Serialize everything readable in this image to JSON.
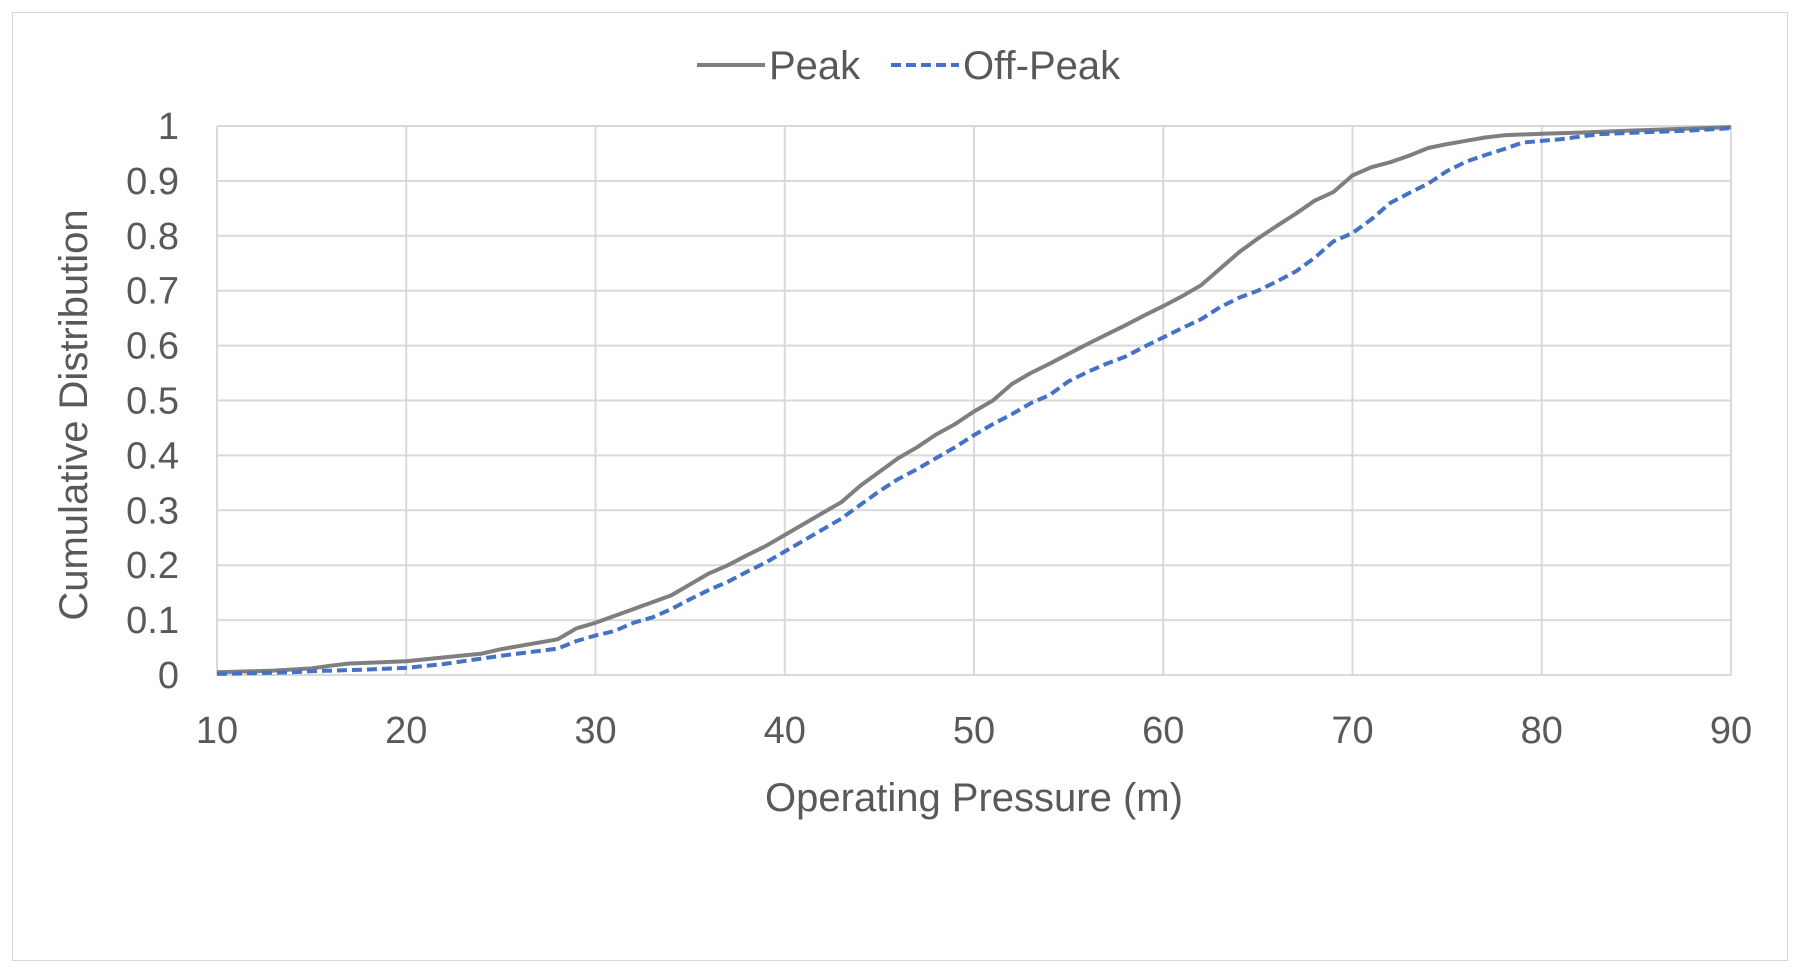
{
  "chart_data": {
    "type": "line",
    "title": "",
    "xlabel": "Operating Pressure (m)",
    "ylabel": "Cumulative Distribution",
    "xlim": [
      10,
      90
    ],
    "ylim": [
      0,
      1
    ],
    "x_ticks": [
      10,
      20,
      30,
      40,
      50,
      60,
      70,
      80,
      90
    ],
    "x_tick_labels": [
      "10",
      "20",
      "30",
      "40",
      "50",
      "60",
      "70",
      "80",
      "90"
    ],
    "y_ticks": [
      0,
      0.1,
      0.2,
      0.3,
      0.4,
      0.5,
      0.6,
      0.7,
      0.8,
      0.9,
      1
    ],
    "y_tick_labels": [
      "0",
      "0.1",
      "0.2",
      "0.3",
      "0.4",
      "0.5",
      "0.6",
      "0.7",
      "0.8",
      "0.9",
      "1"
    ],
    "grid": true,
    "legend_position": "top-center",
    "series": [
      {
        "name": "Peak",
        "color": "#7f7f7f",
        "style": "solid",
        "points": [
          [
            10,
            0.005
          ],
          [
            13,
            0.008
          ],
          [
            15,
            0.012
          ],
          [
            16,
            0.017
          ],
          [
            17,
            0.021
          ],
          [
            20,
            0.025
          ],
          [
            22,
            0.032
          ],
          [
            24,
            0.039
          ],
          [
            25,
            0.047
          ],
          [
            28,
            0.065
          ],
          [
            29,
            0.085
          ],
          [
            30,
            0.095
          ],
          [
            32,
            0.12
          ],
          [
            34,
            0.145
          ],
          [
            35,
            0.165
          ],
          [
            36,
            0.185
          ],
          [
            37,
            0.2
          ],
          [
            38,
            0.218
          ],
          [
            39,
            0.235
          ],
          [
            40,
            0.255
          ],
          [
            41,
            0.275
          ],
          [
            42,
            0.295
          ],
          [
            43,
            0.315
          ],
          [
            44,
            0.345
          ],
          [
            45,
            0.37
          ],
          [
            46,
            0.395
          ],
          [
            47,
            0.415
          ],
          [
            48,
            0.438
          ],
          [
            49,
            0.457
          ],
          [
            50,
            0.48
          ],
          [
            51,
            0.5
          ],
          [
            52,
            0.53
          ],
          [
            53,
            0.55
          ],
          [
            54,
            0.567
          ],
          [
            55,
            0.585
          ],
          [
            56,
            0.603
          ],
          [
            57,
            0.62
          ],
          [
            58,
            0.637
          ],
          [
            59,
            0.655
          ],
          [
            60,
            0.672
          ],
          [
            61,
            0.69
          ],
          [
            62,
            0.71
          ],
          [
            63,
            0.74
          ],
          [
            64,
            0.77
          ],
          [
            65,
            0.795
          ],
          [
            66,
            0.818
          ],
          [
            67,
            0.84
          ],
          [
            68,
            0.864
          ],
          [
            69,
            0.88
          ],
          [
            70,
            0.91
          ],
          [
            71,
            0.925
          ],
          [
            72,
            0.934
          ],
          [
            73,
            0.946
          ],
          [
            74,
            0.96
          ],
          [
            75,
            0.967
          ],
          [
            76,
            0.973
          ],
          [
            77,
            0.979
          ],
          [
            78,
            0.983
          ],
          [
            80,
            0.986
          ],
          [
            82,
            0.988
          ],
          [
            85,
            0.992
          ],
          [
            90,
            0.998
          ]
        ]
      },
      {
        "name": "Off-Peak",
        "color": "#4472c4",
        "style": "dashed",
        "points": [
          [
            10,
            0.002
          ],
          [
            14,
            0.005
          ],
          [
            15,
            0.007
          ],
          [
            18,
            0.01
          ],
          [
            20,
            0.013
          ],
          [
            22,
            0.02
          ],
          [
            24,
            0.03
          ],
          [
            25,
            0.035
          ],
          [
            28,
            0.048
          ],
          [
            29,
            0.062
          ],
          [
            30,
            0.072
          ],
          [
            31,
            0.08
          ],
          [
            32,
            0.095
          ],
          [
            33,
            0.105
          ],
          [
            34,
            0.12
          ],
          [
            35,
            0.138
          ],
          [
            36,
            0.155
          ],
          [
            37,
            0.17
          ],
          [
            38,
            0.188
          ],
          [
            39,
            0.205
          ],
          [
            40,
            0.225
          ],
          [
            41,
            0.245
          ],
          [
            42,
            0.265
          ],
          [
            43,
            0.285
          ],
          [
            44,
            0.31
          ],
          [
            45,
            0.335
          ],
          [
            46,
            0.357
          ],
          [
            47,
            0.375
          ],
          [
            48,
            0.395
          ],
          [
            49,
            0.415
          ],
          [
            50,
            0.437
          ],
          [
            51,
            0.457
          ],
          [
            52,
            0.475
          ],
          [
            53,
            0.495
          ],
          [
            54,
            0.51
          ],
          [
            55,
            0.535
          ],
          [
            56,
            0.552
          ],
          [
            57,
            0.567
          ],
          [
            58,
            0.58
          ],
          [
            59,
            0.598
          ],
          [
            60,
            0.615
          ],
          [
            61,
            0.632
          ],
          [
            62,
            0.648
          ],
          [
            63,
            0.67
          ],
          [
            64,
            0.687
          ],
          [
            65,
            0.7
          ],
          [
            66,
            0.717
          ],
          [
            67,
            0.735
          ],
          [
            68,
            0.76
          ],
          [
            69,
            0.79
          ],
          [
            70,
            0.805
          ],
          [
            71,
            0.83
          ],
          [
            72,
            0.86
          ],
          [
            73,
            0.878
          ],
          [
            74,
            0.895
          ],
          [
            75,
            0.918
          ],
          [
            76,
            0.935
          ],
          [
            77,
            0.947
          ],
          [
            78,
            0.958
          ],
          [
            79,
            0.97
          ],
          [
            81,
            0.976
          ],
          [
            83,
            0.985
          ],
          [
            85,
            0.988
          ],
          [
            88,
            0.992
          ],
          [
            90,
            0.996
          ]
        ]
      }
    ]
  }
}
